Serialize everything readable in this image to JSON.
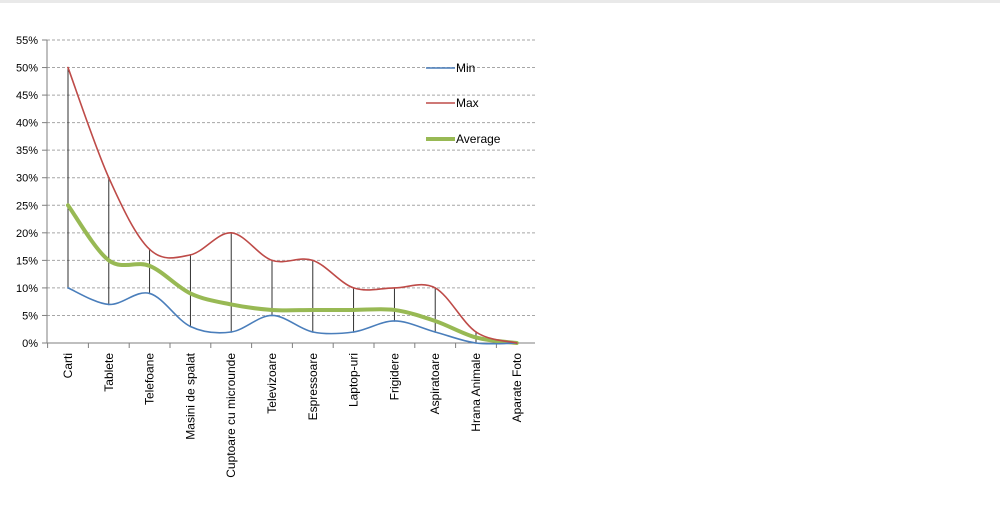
{
  "chart_data": {
    "type": "line",
    "title": "",
    "xlabel": "",
    "ylabel": "",
    "categories": [
      "Carti",
      "Tablete",
      "Telefoane",
      "Masini de spalat",
      "Cuptoare cu microunde",
      "Televizoare",
      "Espressoare",
      "Laptop-uri",
      "Frigidere",
      "Aspiratoare",
      "Hrana Animale",
      "Aparate Foto"
    ],
    "y_ticks": [
      "0%",
      "5%",
      "10%",
      "15%",
      "20%",
      "25%",
      "30%",
      "35%",
      "40%",
      "45%",
      "50%",
      "55%"
    ],
    "ylim": [
      0,
      55
    ],
    "y_unit": "%",
    "grid": "horizontal dashed",
    "legend_position": "right",
    "drop_lines": true,
    "series": [
      {
        "name": "Min",
        "color": "#4a7ebb",
        "values": [
          10,
          7,
          9,
          3,
          2,
          5,
          2,
          2,
          4,
          2,
          0,
          0
        ]
      },
      {
        "name": "Max",
        "color": "#be4b48",
        "values": [
          50,
          30,
          17,
          16,
          20,
          15,
          15,
          10,
          10,
          10,
          2,
          0
        ]
      },
      {
        "name": "Average",
        "color": "#98b954",
        "values": [
          25,
          15,
          14,
          9,
          7,
          6,
          6,
          6,
          6,
          4,
          1,
          0
        ]
      }
    ]
  }
}
